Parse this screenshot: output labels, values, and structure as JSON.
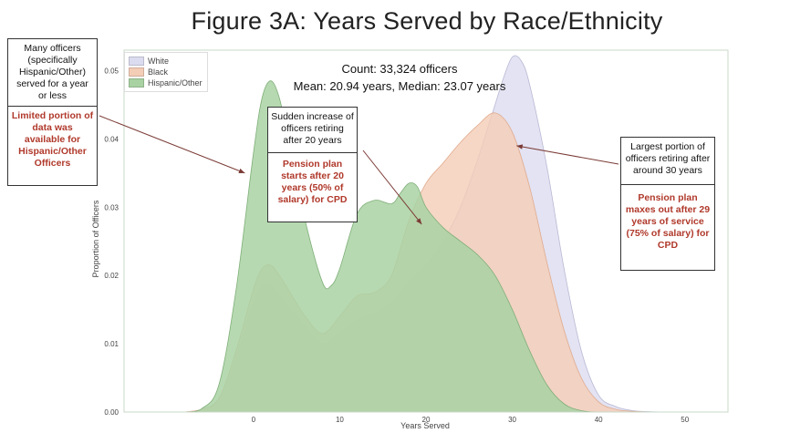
{
  "chart_data": {
    "type": "area",
    "title": "Figure 3A: Years Served by Race/Ethnicity",
    "xlabel": "Years Served",
    "ylabel": "Proportion of Officers",
    "xlim": [
      -15,
      55
    ],
    "ylim": [
      0,
      0.053
    ],
    "xticks": [
      0,
      10,
      20,
      30,
      40,
      50
    ],
    "yticks": [
      0.0,
      0.01,
      0.02,
      0.03,
      0.04,
      0.05
    ],
    "ytick_labels": [
      "0.00",
      "0.01",
      "0.02",
      "0.03",
      "0.04",
      "0.05"
    ],
    "grid": false,
    "legend": "top-left",
    "series": [
      {
        "name": "White",
        "color": "#dcdcf0",
        "x": [
          -8,
          -6,
          -4,
          -2,
          0,
          1,
          2,
          3,
          4,
          6,
          8,
          10,
          12,
          14,
          16,
          18,
          20,
          22,
          24,
          26,
          27,
          28,
          29,
          30,
          31,
          32,
          34,
          36,
          38,
          40,
          42,
          44,
          46,
          48
        ],
        "y": [
          0,
          0.0004,
          0.002,
          0.008,
          0.016,
          0.0185,
          0.0185,
          0.017,
          0.0155,
          0.0125,
          0.01,
          0.0115,
          0.0135,
          0.0145,
          0.016,
          0.019,
          0.0215,
          0.025,
          0.03,
          0.037,
          0.041,
          0.045,
          0.049,
          0.052,
          0.0515,
          0.048,
          0.036,
          0.021,
          0.009,
          0.0025,
          0.0008,
          0.0002,
          5e-05,
          0
        ]
      },
      {
        "name": "Black",
        "color": "#f4cdb7",
        "x": [
          -8,
          -6,
          -4,
          -2,
          0,
          1,
          2,
          3,
          4,
          6,
          8,
          10,
          12,
          14,
          16,
          18,
          20,
          22,
          24,
          26,
          28,
          30,
          32,
          34,
          36,
          38,
          40,
          42,
          44,
          46
        ],
        "y": [
          0,
          0.0004,
          0.002,
          0.009,
          0.018,
          0.021,
          0.0215,
          0.02,
          0.018,
          0.014,
          0.0115,
          0.014,
          0.017,
          0.0175,
          0.02,
          0.028,
          0.0335,
          0.0365,
          0.0395,
          0.042,
          0.0438,
          0.041,
          0.033,
          0.022,
          0.012,
          0.005,
          0.0015,
          0.0004,
          0.0001,
          0
        ]
      },
      {
        "name": "Hispanic/Other",
        "color": "#a9d2a3",
        "x": [
          -8,
          -6,
          -4,
          -2,
          0,
          1,
          2,
          3,
          4,
          6,
          8,
          9,
          10,
          12,
          14,
          16,
          17,
          18,
          19,
          20,
          22,
          24,
          26,
          28,
          30,
          32,
          34,
          36,
          38,
          40
        ],
        "y": [
          0,
          0.0005,
          0.004,
          0.018,
          0.038,
          0.046,
          0.0485,
          0.046,
          0.04,
          0.028,
          0.019,
          0.0185,
          0.021,
          0.029,
          0.031,
          0.0305,
          0.032,
          0.0335,
          0.033,
          0.03,
          0.027,
          0.025,
          0.023,
          0.02,
          0.015,
          0.009,
          0.004,
          0.0012,
          0.0002,
          0
        ]
      }
    ],
    "annotations": [
      {
        "text": "Many officers (specifically Hispanic/Other) served for a year or less",
        "highlight": "Limited portion of data was available for Hispanic/Other Officers",
        "arrow_to": [
          -1,
          0.035
        ]
      },
      {
        "text": "Sudden increase of officers retiring after 20 years",
        "highlight": "Pension plan starts after 20 years (50% of salary) for CPD",
        "arrow_to": [
          19.5,
          0.0275
        ]
      },
      {
        "text": "Largest portion of officers retiring after around 30 years",
        "highlight": "Pension plan maxes out after 29 years of service (75% of salary) for CPD",
        "arrow_to": [
          30.5,
          0.039
        ]
      }
    ],
    "stats": {
      "count": "Count: 33,324 officers",
      "mean_median": "Mean: 20.94 years, Median: 23.07 years"
    }
  }
}
